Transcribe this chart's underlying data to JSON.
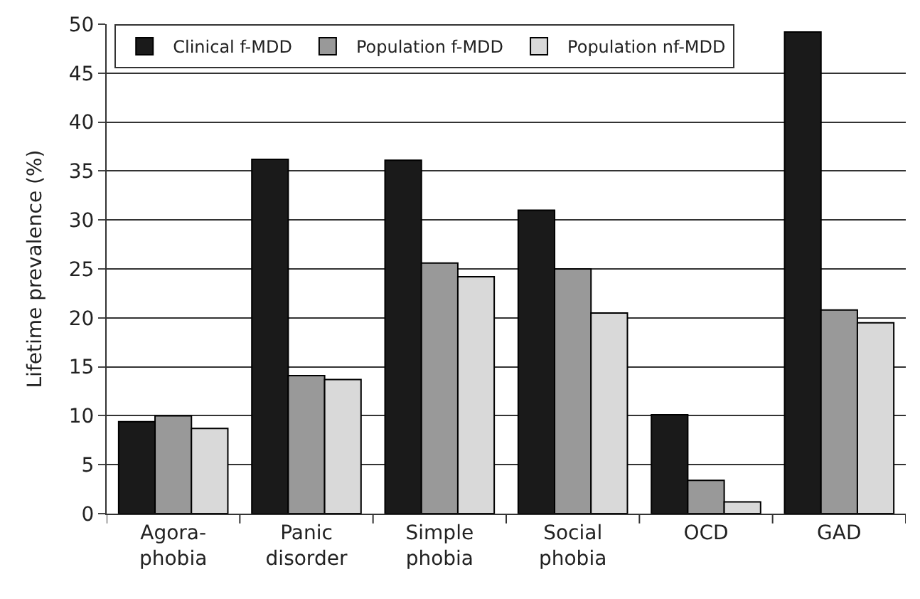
{
  "chart_data": {
    "type": "bar",
    "ylabel": "Lifetime prevalence (%)",
    "categories": [
      "Agora-\nphobia",
      "Panic\ndisorder",
      "Simple\nphobia",
      "Social\nphobia",
      "OCD",
      "GAD"
    ],
    "series": [
      {
        "name": "Clinical f-MDD",
        "color": "#1a1a1a",
        "values": [
          9.4,
          36.2,
          36.1,
          31.0,
          10.1,
          49.2
        ]
      },
      {
        "name": "Population f-MDD",
        "color": "#999999",
        "values": [
          10.0,
          14.1,
          25.6,
          25.0,
          3.4,
          20.8
        ]
      },
      {
        "name": "Population nf-MDD",
        "color": "#d9d9d9",
        "values": [
          8.7,
          13.7,
          24.2,
          20.5,
          1.2,
          19.5
        ]
      }
    ],
    "ylim": [
      0,
      50
    ],
    "yticks": [
      0,
      5,
      10,
      15,
      20,
      25,
      30,
      35,
      40,
      45,
      50
    ],
    "grid": "y",
    "legend": "top"
  }
}
